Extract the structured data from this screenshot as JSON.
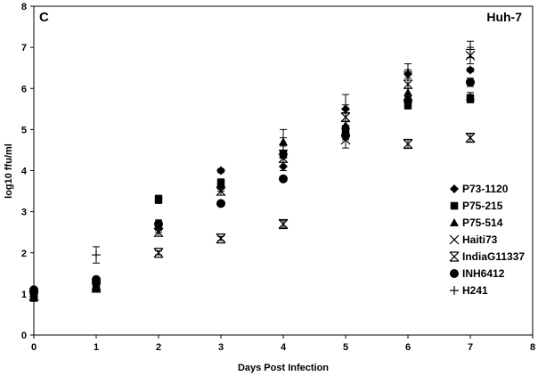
{
  "panel_letter": "C",
  "cell_line": "Huh-7",
  "chart_data": {
    "type": "scatter",
    "xlabel": "Days Post Infection",
    "ylabel": "log10 ffu/ml",
    "xlim": [
      0,
      8
    ],
    "ylim": [
      0,
      8
    ],
    "xticks": [
      0,
      1,
      2,
      3,
      4,
      5,
      6,
      7,
      8
    ],
    "yticks": [
      0,
      1,
      2,
      3,
      4,
      5,
      6,
      7,
      8
    ],
    "grid": false,
    "legend_position": "right",
    "series": [
      {
        "name": "P73-1120",
        "marker": "diamond",
        "x": [
          0,
          1,
          2,
          3,
          4,
          5,
          6,
          7
        ],
        "y": [
          1.1,
          1.3,
          2.7,
          4.0,
          4.1,
          5.5,
          6.35,
          6.45
        ],
        "err": [
          0.05,
          0.05,
          0.1,
          0.05,
          0.1,
          0.1,
          0.1,
          0.05
        ]
      },
      {
        "name": "P75-215",
        "marker": "square",
        "x": [
          0,
          1,
          2,
          3,
          4,
          5,
          6,
          7
        ],
        "y": [
          0.9,
          1.15,
          3.3,
          3.7,
          4.4,
          5.0,
          5.6,
          5.75
        ],
        "err": [
          0.05,
          0.05,
          0.1,
          0.1,
          0.1,
          0.1,
          0.1,
          0.1
        ]
      },
      {
        "name": "P75-514",
        "marker": "triangle",
        "x": [
          0,
          1,
          2,
          3,
          4,
          5,
          6,
          7
        ],
        "y": [
          1.0,
          1.2,
          2.65,
          3.65,
          4.7,
          5.1,
          5.9,
          5.8
        ],
        "err": [
          0.05,
          0.05,
          0.1,
          0.1,
          0.1,
          0.1,
          0.1,
          0.1
        ]
      },
      {
        "name": "Haiti73",
        "marker": "x",
        "x": [
          0,
          1,
          2,
          3,
          4,
          5,
          6,
          7
        ],
        "y": [
          0.95,
          1.2,
          2.5,
          3.5,
          4.3,
          4.75,
          6.1,
          6.8
        ],
        "err": [
          0.05,
          0.1,
          0.1,
          0.1,
          0.1,
          0.2,
          0.1,
          0.2
        ]
      },
      {
        "name": "IndiaG11337",
        "marker": "asterisk",
        "x": [
          0,
          1,
          2,
          3,
          4,
          5,
          6,
          7
        ],
        "y": [
          0.95,
          1.15,
          2.0,
          2.35,
          2.7,
          5.3,
          4.65,
          4.8
        ],
        "err": [
          0.05,
          0.1,
          0.05,
          0.05,
          0.08,
          0.1,
          0.1,
          0.1
        ]
      },
      {
        "name": "INH6412",
        "marker": "circle",
        "x": [
          0,
          1,
          2,
          3,
          4,
          5,
          6,
          7
        ],
        "y": [
          1.1,
          1.35,
          2.7,
          3.2,
          3.8,
          4.85,
          5.7,
          6.15
        ],
        "err": [
          0.05,
          0.05,
          0.1,
          0.05,
          0.05,
          0.1,
          0.1,
          0.1
        ]
      },
      {
        "name": "H241",
        "marker": "plus",
        "x": [
          0,
          1,
          2,
          3,
          4,
          5,
          6,
          7
        ],
        "y": [
          1.0,
          1.95,
          2.6,
          3.6,
          4.5,
          5.4,
          6.4,
          6.95
        ],
        "err": [
          0.05,
          0.2,
          0.1,
          0.1,
          0.5,
          0.45,
          0.2,
          0.2
        ]
      }
    ]
  }
}
